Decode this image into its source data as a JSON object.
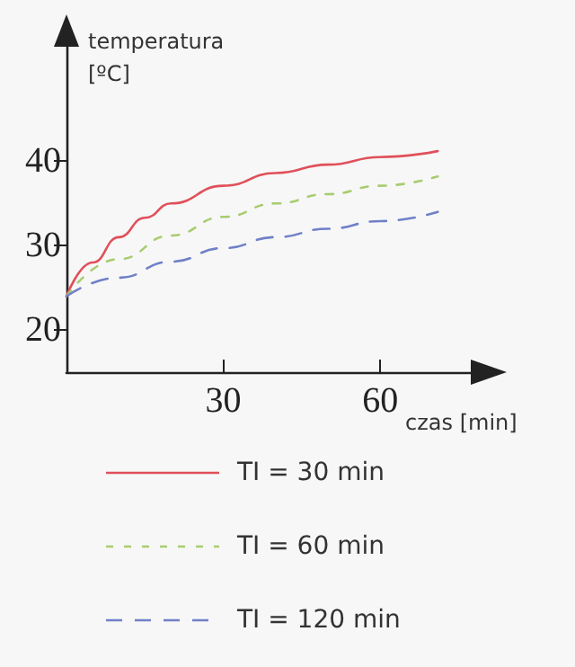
{
  "chart_data": {
    "type": "line",
    "xlabel": "czas [min]",
    "ylabel": "temperatura\n[ºC]",
    "xlim": [
      0,
      78
    ],
    "xticks": [
      30,
      60
    ],
    "ylim": [
      15,
      54
    ],
    "yticks": [
      20,
      30,
      40
    ],
    "grid": false,
    "legend": "bottom",
    "marker": "none",
    "series": [
      {
        "name": "TI = 30 min",
        "color": "#e0505a",
        "line_style": "solid",
        "x": [
          0,
          5,
          10,
          15,
          20,
          30,
          40,
          50,
          60,
          71
        ],
        "values": [
          24,
          28,
          31,
          33.3,
          35,
          37.1,
          38.6,
          39.6,
          40.5,
          41.2
        ]
      },
      {
        "name": "TI = 60 min",
        "color": "#a8cc70",
        "line_style": "dotted",
        "x": [
          0,
          10,
          20,
          30,
          40,
          50,
          60,
          71
        ],
        "values": [
          24,
          28.4,
          31.2,
          33.4,
          35,
          36.1,
          37.1,
          38.2
        ]
      },
      {
        "name": "TI = 120 min",
        "color": "#7080c8",
        "line_style": "dashed",
        "x": [
          0,
          10,
          20,
          30,
          40,
          50,
          60,
          71
        ],
        "values": [
          24,
          26.2,
          28.1,
          29.7,
          31,
          32,
          32.9,
          34
        ]
      }
    ]
  }
}
